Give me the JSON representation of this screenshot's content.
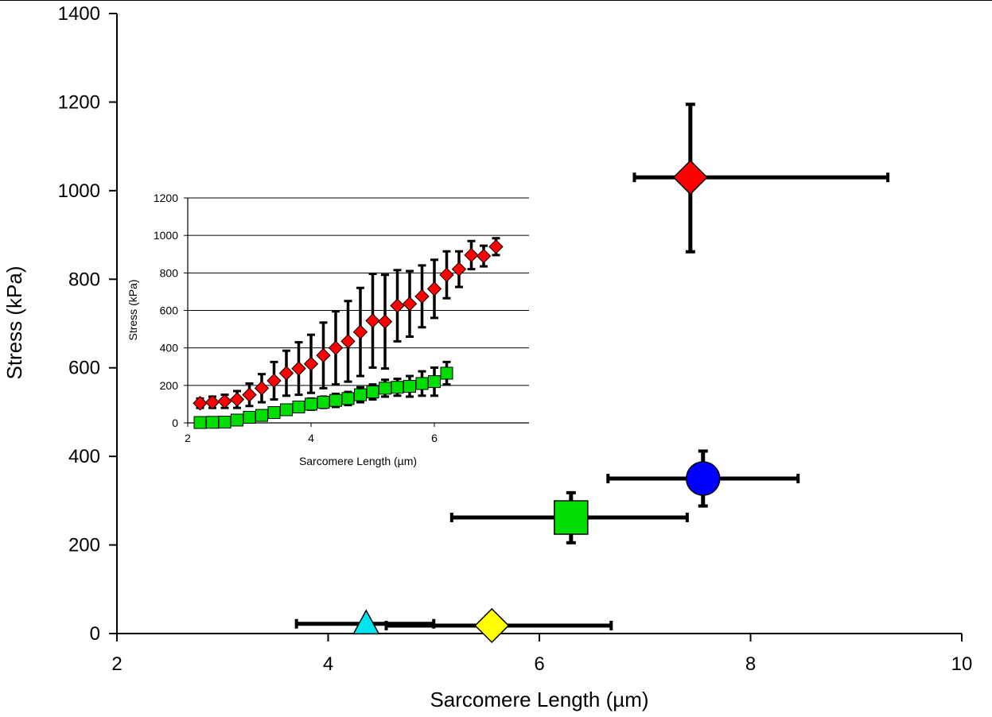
{
  "chart_data": [
    {
      "type": "scatter",
      "xlabel": "Sarcomere Length (µm)",
      "ylabel": "Stress (kPa)",
      "xlim": [
        2,
        10
      ],
      "ylim": [
        0,
        1400
      ],
      "xticks": [
        2,
        4,
        6,
        8,
        10
      ],
      "yticks": [
        0,
        200,
        400,
        600,
        800,
        1000,
        1200,
        1400
      ],
      "grid": false,
      "series": [
        {
          "marker": "diamond",
          "color": "#ff0000",
          "points": [
            {
              "x": 7.43,
              "y": 1030,
              "xerr": [
                6.9,
                9.3
              ],
              "yerr": [
                862,
                1195
              ]
            }
          ]
        },
        {
          "marker": "circle",
          "color": "#0000ff",
          "points": [
            {
              "x": 7.55,
              "y": 350,
              "xerr": [
                6.65,
                8.45
              ],
              "yerr": [
                288,
                412
              ]
            }
          ]
        },
        {
          "marker": "square",
          "color": "#00dd00",
          "points": [
            {
              "x": 6.3,
              "y": 262,
              "xerr": [
                5.17,
                7.4
              ],
              "yerr": [
                205,
                318
              ]
            }
          ]
        },
        {
          "marker": "triangle",
          "color": "#00e5ee",
          "points": [
            {
              "x": 4.36,
              "y": 22,
              "xerr": [
                3.7,
                5.0
              ],
              "yerr": [
                22,
                22
              ]
            }
          ]
        },
        {
          "marker": "diamond",
          "color": "#ffff00",
          "points": [
            {
              "x": 5.55,
              "y": 18,
              "xerr": [
                4.55,
                6.68
              ],
              "yerr": [
                18,
                18
              ]
            }
          ]
        }
      ]
    },
    {
      "type": "scatter",
      "xlabel": "Sarcomere Length (µm)",
      "ylabel": "Stress (kPa)",
      "xlim": [
        2,
        7.5
      ],
      "ylim": [
        0,
        1200
      ],
      "xticks": [
        2,
        4,
        6
      ],
      "yticks": [
        0,
        200,
        400,
        600,
        800,
        1000,
        1200
      ],
      "grid": true,
      "series": [
        {
          "marker": "diamond",
          "color": "#ff0000",
          "points": [
            {
              "x": 2.2,
              "y": 105,
              "err": 25
            },
            {
              "x": 2.4,
              "y": 110,
              "err": 30
            },
            {
              "x": 2.6,
              "y": 115,
              "err": 35
            },
            {
              "x": 2.8,
              "y": 125,
              "err": 45
            },
            {
              "x": 3.0,
              "y": 150,
              "err": 60
            },
            {
              "x": 3.2,
              "y": 185,
              "err": 75
            },
            {
              "x": 3.4,
              "y": 225,
              "err": 100
            },
            {
              "x": 3.6,
              "y": 265,
              "err": 120
            },
            {
              "x": 3.8,
              "y": 290,
              "err": 140
            },
            {
              "x": 4.0,
              "y": 315,
              "err": 155
            },
            {
              "x": 4.2,
              "y": 360,
              "err": 175
            },
            {
              "x": 4.4,
              "y": 400,
              "err": 195
            },
            {
              "x": 4.6,
              "y": 435,
              "err": 215
            },
            {
              "x": 4.8,
              "y": 485,
              "err": 235
            },
            {
              "x": 5.0,
              "y": 545,
              "err": 250
            },
            {
              "x": 5.2,
              "y": 540,
              "err": 250
            },
            {
              "x": 5.4,
              "y": 625,
              "err": 190
            },
            {
              "x": 5.6,
              "y": 635,
              "err": 175
            },
            {
              "x": 5.8,
              "y": 675,
              "err": 165
            },
            {
              "x": 6.0,
              "y": 715,
              "err": 155
            },
            {
              "x": 6.2,
              "y": 790,
              "err": 125
            },
            {
              "x": 6.4,
              "y": 820,
              "err": 95
            },
            {
              "x": 6.6,
              "y": 895,
              "err": 75
            },
            {
              "x": 6.8,
              "y": 890,
              "err": 55
            },
            {
              "x": 7.0,
              "y": 940,
              "err": 45
            }
          ]
        },
        {
          "marker": "square",
          "color": "#00dd00",
          "points": [
            {
              "x": 2.2,
              "y": 2,
              "err": 0
            },
            {
              "x": 2.4,
              "y": 3,
              "err": 0
            },
            {
              "x": 2.6,
              "y": 4,
              "err": 5
            },
            {
              "x": 2.8,
              "y": 15,
              "err": 10
            },
            {
              "x": 3.0,
              "y": 30,
              "err": 15
            },
            {
              "x": 3.2,
              "y": 40,
              "err": 20
            },
            {
              "x": 3.4,
              "y": 55,
              "err": 20
            },
            {
              "x": 3.6,
              "y": 70,
              "err": 25
            },
            {
              "x": 3.8,
              "y": 85,
              "err": 25
            },
            {
              "x": 4.0,
              "y": 100,
              "err": 30
            },
            {
              "x": 4.2,
              "y": 110,
              "err": 30
            },
            {
              "x": 4.4,
              "y": 120,
              "err": 35
            },
            {
              "x": 4.6,
              "y": 130,
              "err": 35
            },
            {
              "x": 4.8,
              "y": 150,
              "err": 40
            },
            {
              "x": 5.0,
              "y": 165,
              "err": 40
            },
            {
              "x": 5.2,
              "y": 185,
              "err": 45
            },
            {
              "x": 5.4,
              "y": 190,
              "err": 45
            },
            {
              "x": 5.6,
              "y": 195,
              "err": 55
            },
            {
              "x": 5.8,
              "y": 210,
              "err": 65
            },
            {
              "x": 6.0,
              "y": 220,
              "err": 75
            },
            {
              "x": 6.2,
              "y": 265,
              "err": 60
            }
          ]
        }
      ]
    }
  ]
}
